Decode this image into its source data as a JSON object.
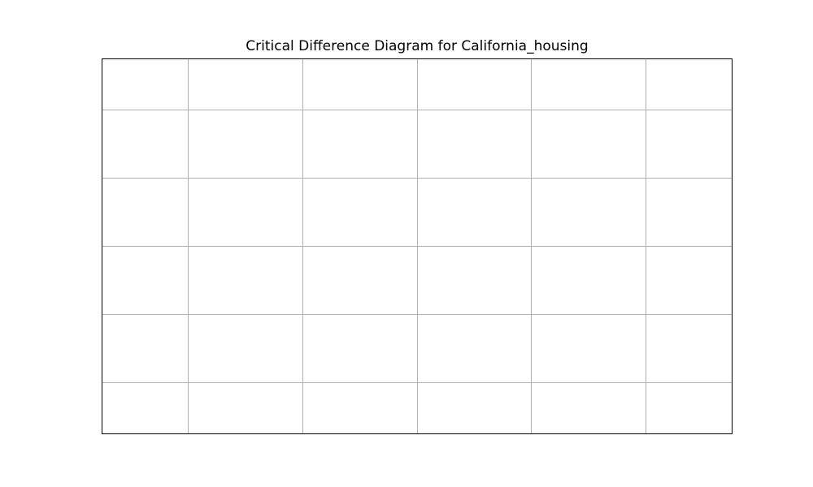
{
  "chart_data": {
    "type": "line",
    "title": "Critical Difference Diagram for California_housing",
    "xlabel": "",
    "ylabel": "",
    "series": [],
    "grid": true,
    "x_gridlines": 5,
    "y_gridlines": 5,
    "show_tick_labels": false,
    "colors": {
      "background": "#ffffff",
      "frame": "#000000",
      "grid": "#b0b0b0",
      "title": "#000000"
    }
  }
}
